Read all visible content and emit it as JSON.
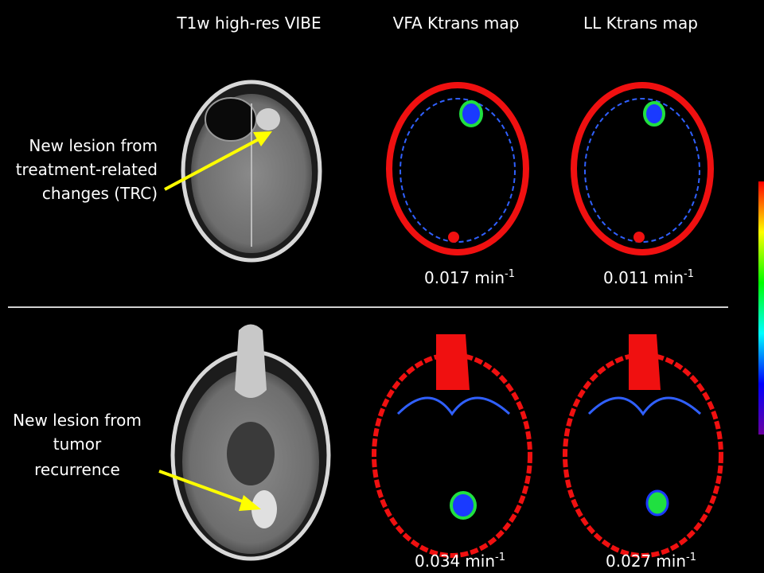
{
  "columns": [
    "T1w high-res VIBE",
    "VFA Ktrans map",
    "LL Ktrans map"
  ],
  "rows": [
    {
      "label": [
        "New lesion from",
        "treatment-related",
        "changes (TRC)"
      ],
      "measurements": [
        {
          "value": "0.017",
          "unit": "min",
          "exponent": "-1"
        },
        {
          "value": "0.011",
          "unit": "min",
          "exponent": "-1"
        }
      ]
    },
    {
      "label": [
        "New lesion from",
        "tumor",
        "recurrence"
      ],
      "measurements": [
        {
          "value": "0.034",
          "unit": "min",
          "exponent": "-1"
        },
        {
          "value": "0.027",
          "unit": "min",
          "exponent": "-1"
        }
      ]
    }
  ]
}
